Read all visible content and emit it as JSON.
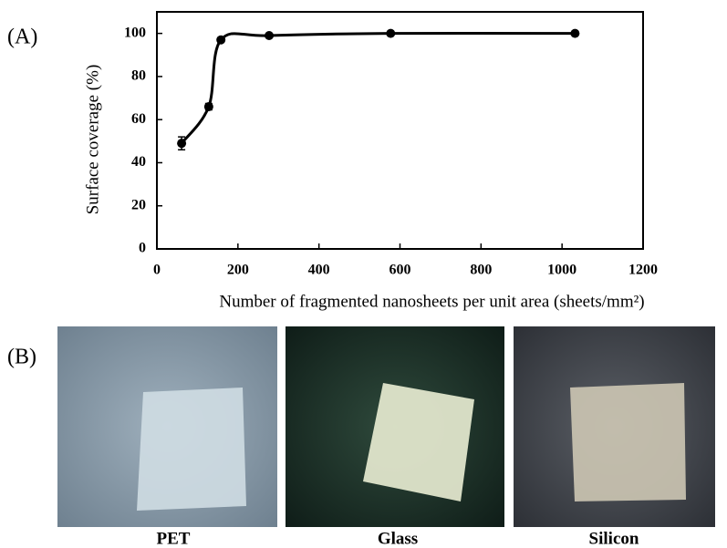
{
  "panels": {
    "a": "(A)",
    "b": "(B)"
  },
  "chart_data": {
    "type": "line",
    "xlabel": "Number of fragmented nanosheets per unit area  (sheets/mm²)",
    "ylabel": "Surface coverage (%)",
    "x": [
      61,
      128,
      158,
      277,
      577,
      1032
    ],
    "series": [
      {
        "color": "#000000",
        "values": [
          49,
          66,
          97,
          99,
          100,
          100
        ],
        "errors": [
          3,
          1.5,
          1,
          0.5,
          0.5,
          0.5
        ]
      }
    ],
    "xlim": [
      0,
      1200
    ],
    "xticks": [
      0,
      200,
      400,
      600,
      800,
      1000,
      1200
    ],
    "ylim": [
      0,
      110
    ],
    "yticks": [
      0,
      20,
      40,
      60,
      80,
      100
    ]
  },
  "images": [
    {
      "caption": "PET"
    },
    {
      "caption": "Glass"
    },
    {
      "caption": "Silicon"
    }
  ]
}
